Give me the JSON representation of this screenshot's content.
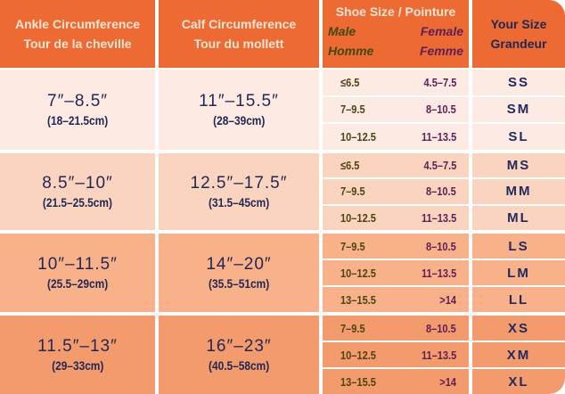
{
  "headers": {
    "ankle": [
      "Ankle Circumference",
      "Tour de la cheville"
    ],
    "calf": [
      "Calf Circumference",
      "Tour du mollett"
    ],
    "shoe": {
      "title": "Shoe Size / Pointure",
      "male": "Male",
      "homme": "Homme",
      "female": "Female",
      "femme": "Femme"
    },
    "size": [
      "Your Size",
      "Grandeur"
    ]
  },
  "groups": [
    {
      "ankle_in": "7″–8.5″",
      "ankle_cm": "(18–21.5cm)",
      "calf_in": "11″–15.5″",
      "calf_cm": "(28–39cm)",
      "rows": [
        {
          "male": "≤6.5",
          "female": "4.5–7.5",
          "size": "SS"
        },
        {
          "male": "7–9.5",
          "female": "8–10.5",
          "size": "SM"
        },
        {
          "male": "10–12.5",
          "female": "11–13.5",
          "size": "SL"
        }
      ]
    },
    {
      "ankle_in": "8.5″–10″",
      "ankle_cm": "(21.5–25.5cm)",
      "calf_in": "12.5″–17.5″",
      "calf_cm": "(31.5–45cm)",
      "rows": [
        {
          "male": "≤6.5",
          "female": "4.5–7.5",
          "size": "MS"
        },
        {
          "male": "7–9.5",
          "female": "8–10.5",
          "size": "MM"
        },
        {
          "male": "10–12.5",
          "female": "11–13.5",
          "size": "ML"
        }
      ]
    },
    {
      "ankle_in": "10″–11.5″",
      "ankle_cm": "(25.5–29cm)",
      "calf_in": "14″–20″",
      "calf_cm": "(35.5–51cm)",
      "rows": [
        {
          "male": "7–9.5",
          "female": "8–10.5",
          "size": "LS"
        },
        {
          "male": "10–12.5",
          "female": "11–13.5",
          "size": "LM"
        },
        {
          "male": "13–15.5",
          "female": ">14",
          "size": "LL"
        }
      ]
    },
    {
      "ankle_in": "11.5″–13″",
      "ankle_cm": "(29–33cm)",
      "calf_in": "16″–23″",
      "calf_cm": "(40.5–58cm)",
      "rows": [
        {
          "male": "7–9.5",
          "female": "8–10.5",
          "size": "XS"
        },
        {
          "male": "10–12.5",
          "female": "11–13.5",
          "size": "XM"
        },
        {
          "male": "13–15.5",
          "female": ">14",
          "size": "XL"
        }
      ]
    }
  ]
}
